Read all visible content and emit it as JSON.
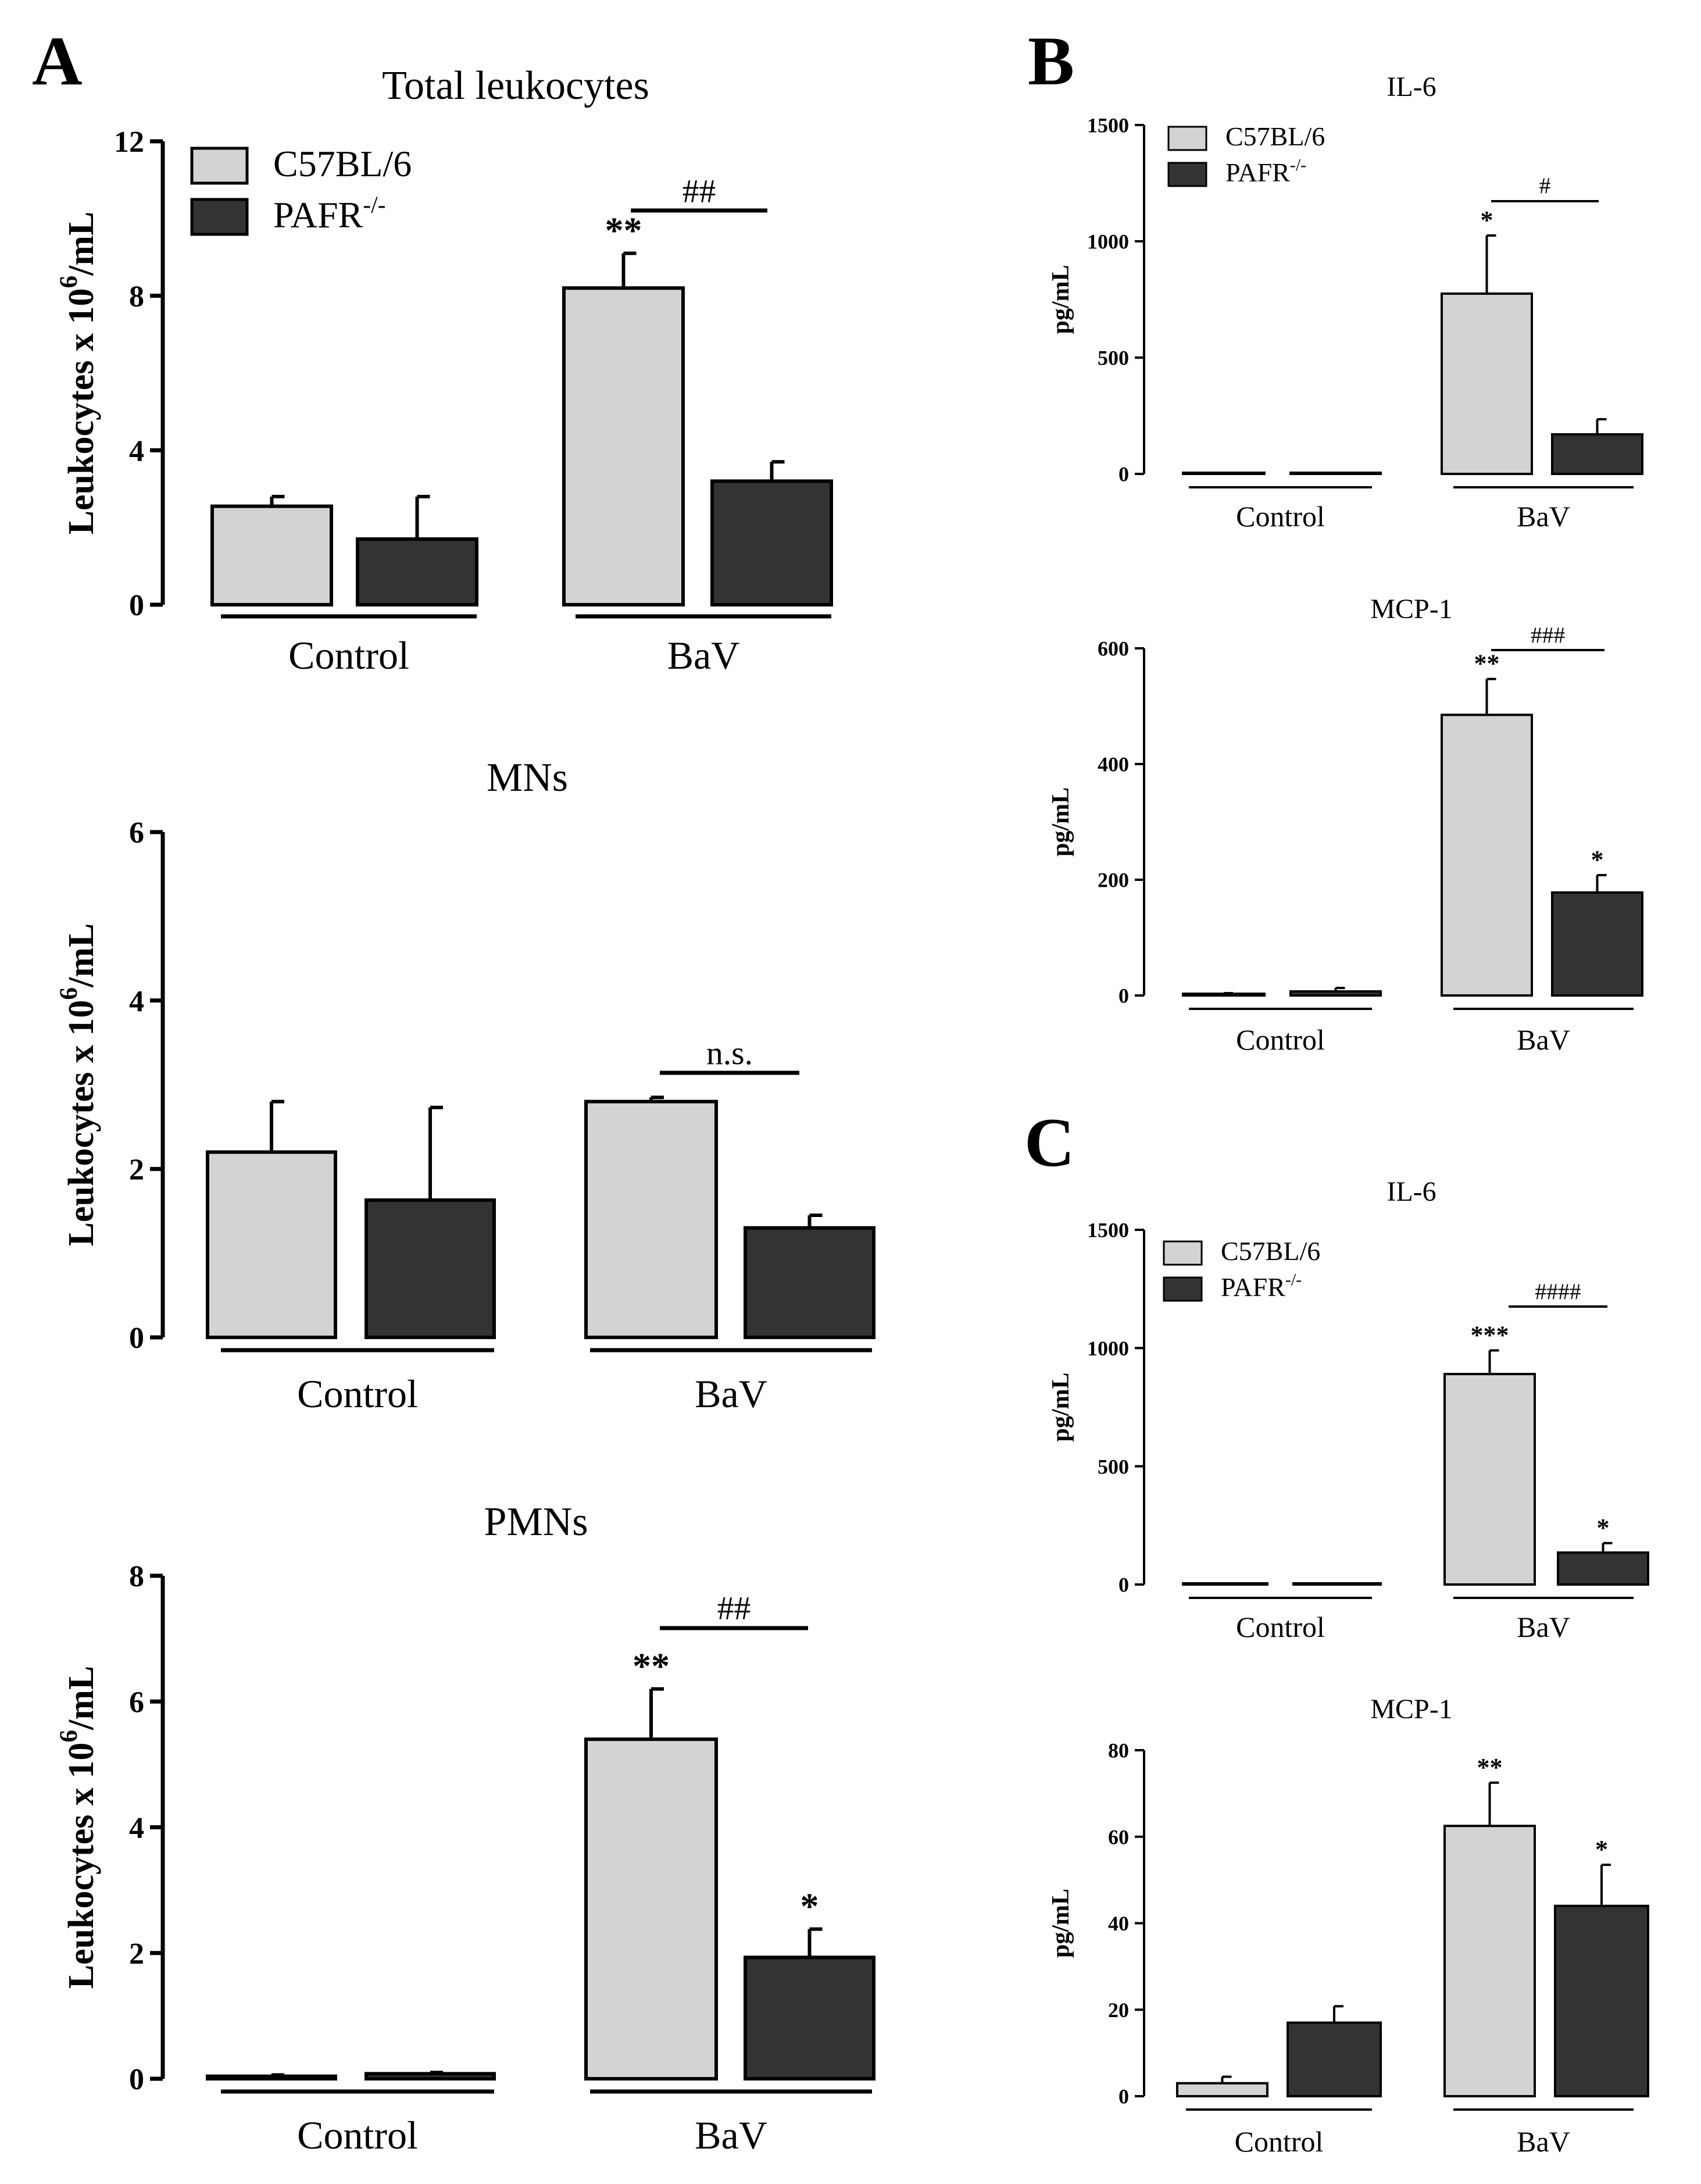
{
  "figure": {
    "panel_letters": {
      "A": "A",
      "B": "B",
      "C": "C"
    }
  },
  "legend": {
    "series1": "C57BL/6",
    "series2_base": "PAFR",
    "series2_sup": "-/-"
  },
  "colors": {
    "series1": "#d3d3d3",
    "series2": "#333333",
    "stroke": "#000000"
  },
  "chart_data": [
    {
      "id": "A1",
      "type": "bar",
      "panel": "A",
      "title": "Total leukocytes",
      "ylabel_main": "Leukocytes x 10",
      "ylabel_sup": "6",
      "ylabel_tail": "/mL",
      "categories": [
        "Control",
        "BaV"
      ],
      "ylim": [
        0,
        12
      ],
      "yticks": [
        "0",
        "4",
        "8",
        "12"
      ],
      "series": [
        {
          "name": "C57BL/6",
          "values": [
            2.55,
            8.2
          ],
          "errors": [
            0.25,
            0.9
          ],
          "marks": [
            "",
            "**"
          ]
        },
        {
          "name": "PAFR-/-",
          "values": [
            1.7,
            3.2
          ],
          "errors": [
            1.1,
            0.5
          ],
          "marks": [
            "",
            ""
          ]
        }
      ],
      "comparison": {
        "group": "BaV",
        "label": "##"
      },
      "legend_shown": true
    },
    {
      "id": "A2",
      "type": "bar",
      "panel": "A",
      "title": "MNs",
      "ylabel_main": "Leukocytes x 10",
      "ylabel_sup": "6",
      "ylabel_tail": "/mL",
      "categories": [
        "Control",
        "BaV"
      ],
      "ylim": [
        0,
        6
      ],
      "yticks": [
        "0",
        "2",
        "4",
        "6"
      ],
      "series": [
        {
          "name": "C57BL/6",
          "values": [
            2.2,
            2.8
          ],
          "errors": [
            0.6,
            0.05
          ],
          "marks": [
            "",
            ""
          ]
        },
        {
          "name": "PAFR-/-",
          "values": [
            1.63,
            1.3
          ],
          "errors": [
            1.1,
            0.15
          ],
          "marks": [
            "",
            ""
          ]
        }
      ],
      "comparison": {
        "group": "BaV",
        "label": "n.s."
      },
      "legend_shown": false
    },
    {
      "id": "A3",
      "type": "bar",
      "panel": "A",
      "title": "PMNs",
      "ylabel_main": "Leukocytes x 10",
      "ylabel_sup": "6",
      "ylabel_tail": "/mL",
      "categories": [
        "Control",
        "BaV"
      ],
      "ylim": [
        0,
        8
      ],
      "yticks": [
        "0",
        "2",
        "4",
        "6",
        "8"
      ],
      "series": [
        {
          "name": "C57BL/6",
          "values": [
            0.04,
            5.4
          ],
          "errors": [
            0.02,
            0.8
          ],
          "marks": [
            "",
            "**"
          ]
        },
        {
          "name": "PAFR-/-",
          "values": [
            0.08,
            1.93
          ],
          "errors": [
            0.02,
            0.45
          ],
          "marks": [
            "",
            "*"
          ]
        }
      ],
      "comparison": {
        "group": "BaV",
        "label": "##"
      },
      "legend_shown": false
    },
    {
      "id": "B1",
      "type": "bar",
      "panel": "B",
      "title": "IL-6",
      "ylabel_main": "pg/mL",
      "ylabel_sup": "",
      "ylabel_tail": "",
      "categories": [
        "Control",
        "BaV"
      ],
      "ylim": [
        0,
        1500
      ],
      "yticks": [
        "0",
        "500",
        "1000",
        "1500"
      ],
      "series": [
        {
          "name": "C57BL/6",
          "values": [
            2,
            775
          ],
          "errors": [
            0,
            250
          ],
          "marks": [
            "",
            "*"
          ]
        },
        {
          "name": "PAFR-/-",
          "values": [
            2,
            170
          ],
          "errors": [
            0,
            65
          ],
          "marks": [
            "",
            ""
          ]
        }
      ],
      "comparison": {
        "group": "BaV",
        "label": "#"
      },
      "legend_shown": true
    },
    {
      "id": "B2",
      "type": "bar",
      "panel": "B",
      "title": "MCP-1",
      "ylabel_main": "pg/mL",
      "ylabel_sup": "",
      "ylabel_tail": "",
      "categories": [
        "Control",
        "BaV"
      ],
      "ylim": [
        0,
        600
      ],
      "yticks": [
        "0",
        "200",
        "400",
        "600"
      ],
      "series": [
        {
          "name": "C57BL/6",
          "values": [
            3,
            485
          ],
          "errors": [
            1,
            62
          ],
          "marks": [
            "",
            "**"
          ]
        },
        {
          "name": "PAFR-/-",
          "values": [
            7,
            178
          ],
          "errors": [
            6,
            30
          ],
          "marks": [
            "",
            "*"
          ]
        }
      ],
      "comparison": {
        "group": "BaV",
        "label": "###"
      },
      "legend_shown": false
    },
    {
      "id": "C1",
      "type": "bar",
      "panel": "C",
      "title": "IL-6",
      "ylabel_main": "pg/mL",
      "ylabel_sup": "",
      "ylabel_tail": "",
      "categories": [
        "Control",
        "BaV"
      ],
      "ylim": [
        0,
        1500
      ],
      "yticks": [
        "0",
        "500",
        "1000",
        "1500"
      ],
      "series": [
        {
          "name": "C57BL/6",
          "values": [
            2,
            890
          ],
          "errors": [
            0,
            100
          ],
          "marks": [
            "",
            "***"
          ]
        },
        {
          "name": "PAFR-/-",
          "values": [
            2,
            135
          ],
          "errors": [
            0,
            40
          ],
          "marks": [
            "",
            "*"
          ]
        }
      ],
      "comparison": {
        "group": "BaV",
        "label": "####"
      },
      "legend_shown": true
    },
    {
      "id": "C2",
      "type": "bar",
      "panel": "C",
      "title": "MCP-1",
      "ylabel_main": "pg/mL",
      "ylabel_sup": "",
      "ylabel_tail": "",
      "categories": [
        "Control",
        "BaV"
      ],
      "ylim": [
        0,
        80
      ],
      "yticks": [
        "0",
        "20",
        "40",
        "60",
        "80"
      ],
      "series": [
        {
          "name": "C57BL/6",
          "values": [
            3,
            62.5
          ],
          "errors": [
            1.5,
            10
          ],
          "marks": [
            "",
            "**"
          ]
        },
        {
          "name": "PAFR-/-",
          "values": [
            17,
            44
          ],
          "errors": [
            3.8,
            9.5
          ],
          "marks": [
            "",
            "*"
          ]
        }
      ],
      "comparison": null,
      "legend_shown": false
    }
  ]
}
